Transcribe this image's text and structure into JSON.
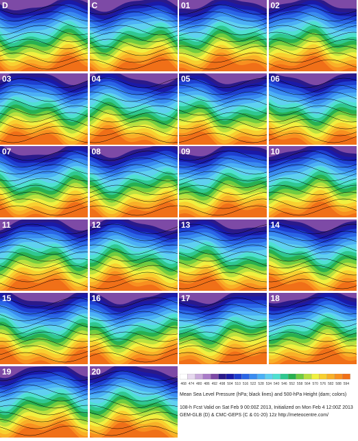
{
  "panels": [
    {
      "label": "D"
    },
    {
      "label": "C"
    },
    {
      "label": "01"
    },
    {
      "label": "02"
    },
    {
      "label": "03"
    },
    {
      "label": "04"
    },
    {
      "label": "05"
    },
    {
      "label": "06"
    },
    {
      "label": "07"
    },
    {
      "label": "08"
    },
    {
      "label": "09"
    },
    {
      "label": "10"
    },
    {
      "label": "11"
    },
    {
      "label": "12"
    },
    {
      "label": "13"
    },
    {
      "label": "14"
    },
    {
      "label": "15"
    },
    {
      "label": "16"
    },
    {
      "label": "17"
    },
    {
      "label": "18"
    },
    {
      "label": "19"
    },
    {
      "label": "20"
    }
  ],
  "colorbar": [
    {
      "label": "468",
      "color": "#ffffff"
    },
    {
      "label": "474",
      "color": "#e6d8ee"
    },
    {
      "label": "480",
      "color": "#c9a9dc"
    },
    {
      "label": "486",
      "color": "#a97bc8"
    },
    {
      "label": "492",
      "color": "#7d4aa6"
    },
    {
      "label": "498",
      "color": "#2b1a8a"
    },
    {
      "label": "504",
      "color": "#1a1aa8"
    },
    {
      "label": "510",
      "color": "#1e3fd0"
    },
    {
      "label": "516",
      "color": "#2a66e6"
    },
    {
      "label": "522",
      "color": "#3a8cf0"
    },
    {
      "label": "528",
      "color": "#4cb0f5"
    },
    {
      "label": "534",
      "color": "#5fd0f0"
    },
    {
      "label": "540",
      "color": "#4fe0d0"
    },
    {
      "label": "546",
      "color": "#30c890"
    },
    {
      "label": "552",
      "color": "#28b050"
    },
    {
      "label": "558",
      "color": "#70cc40"
    },
    {
      "label": "564",
      "color": "#b8e040"
    },
    {
      "label": "570",
      "color": "#f0f040"
    },
    {
      "label": "576",
      "color": "#f8d030"
    },
    {
      "label": "582",
      "color": "#f8b028"
    },
    {
      "label": "588",
      "color": "#f89020"
    },
    {
      "label": "594",
      "color": "#f07018"
    }
  ],
  "caption": "Mean Sea Level Pressure (hPa; black lines) and 500-hPa Height (dam; colors)",
  "valid_line": "108-h Fcst Valid on Sat Feb 9 00:00Z 2013, Initialized on Mon Feb 4 12:00Z 2013",
  "source_line": "GEM-GLB (D) & CMC-GEPS (C & 01-20) 12z http://meteocentre.com/"
}
